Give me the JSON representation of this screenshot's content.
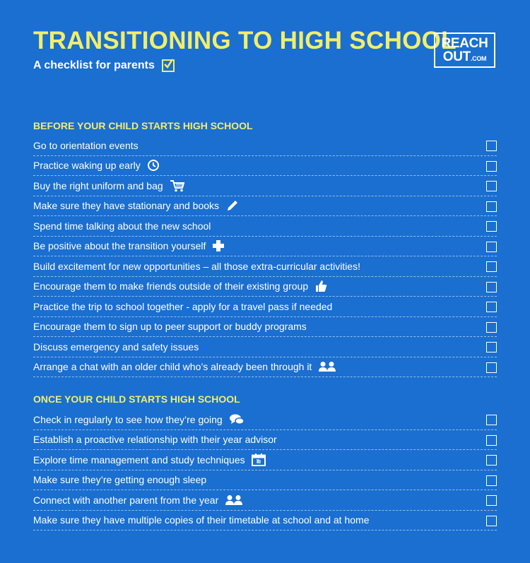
{
  "header": {
    "title": "TRANSITIONING TO HIGH SCHOOL",
    "subtitle": "A checklist for parents",
    "logo_line1": "REACH",
    "logo_line2": "OUT",
    "logo_suffix": ".COM"
  },
  "colors": {
    "background": "#1a6fd0",
    "heading": "#f2ee6b",
    "text": "#ffffff"
  },
  "sections": [
    {
      "heading": "BEFORE YOUR CHILD STARTS HIGH SCHOOL",
      "items": [
        {
          "label": "Go to orientation events",
          "icon": ""
        },
        {
          "label": "Practice waking up early",
          "icon": "clock-icon"
        },
        {
          "label": "Buy the right uniform and bag",
          "icon": "shopping-cart-icon"
        },
        {
          "label": "Make sure they have stationary and books",
          "icon": "pencil-icon"
        },
        {
          "label": "Spend time talking about the new school",
          "icon": ""
        },
        {
          "label": "Be positive about the transition yourself",
          "icon": "plus-icon"
        },
        {
          "label": "Build excitement for new opportunities – all those extra-curricular activities!",
          "icon": ""
        },
        {
          "label": "Encourage them to make friends outside of their existing group",
          "icon": "thumbs-up-icon"
        },
        {
          "label": "Practice the trip to school together - apply for a travel pass if needed",
          "icon": ""
        },
        {
          "label": "Encourage them to sign up to peer support or buddy programs",
          "icon": ""
        },
        {
          "label": "Discuss emergency and safety issues",
          "icon": ""
        },
        {
          "label": "Arrange a chat with an older child who’s already been through it",
          "icon": "people-icon"
        }
      ]
    },
    {
      "heading": "ONCE YOUR CHILD STARTS HIGH SCHOOL",
      "items": [
        {
          "label": "Check in regularly to see how they’re going",
          "icon": "chat-bubbles-icon"
        },
        {
          "label": "Establish a proactive relationship with their year advisor",
          "icon": ""
        },
        {
          "label": "Explore time management and study techniques",
          "icon": "calendar-icon"
        },
        {
          "label": "Make sure they’re getting enough sleep",
          "icon": ""
        },
        {
          "label": "Connect with another parent from the year",
          "icon": "people-icon"
        },
        {
          "label": "Make sure they have multiple copies of their timetable at school and at home",
          "icon": ""
        }
      ]
    }
  ]
}
